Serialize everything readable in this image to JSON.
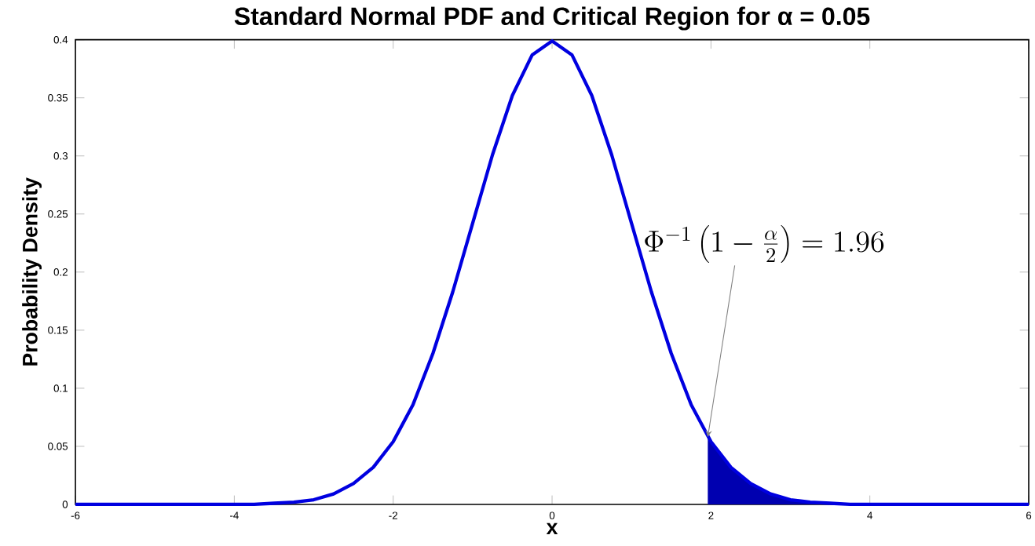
{
  "chart_data": {
    "type": "line",
    "title": "Standard Normal PDF and Critical Region for α = 0.05",
    "xlabel": "x",
    "ylabel": "Probability Density",
    "series": [
      {
        "color": "#0000e0",
        "x": [
          -6,
          -5.5,
          -5,
          -4.5,
          -4,
          -3.75,
          -3.5,
          -3.25,
          -3,
          -2.75,
          -2.5,
          -2.25,
          -2,
          -1.75,
          -1.5,
          -1.25,
          -1,
          -0.75,
          -0.5,
          -0.25,
          0,
          0.25,
          0.5,
          0.75,
          1,
          1.25,
          1.5,
          1.75,
          2,
          2.25,
          2.5,
          2.75,
          3,
          3.25,
          3.5,
          3.75,
          4,
          4.5,
          5,
          5.5,
          6
        ],
        "values": [
          0,
          0,
          0,
          0,
          0,
          0,
          0.001,
          0.002,
          0.004,
          0.009,
          0.018,
          0.032,
          0.054,
          0.086,
          0.13,
          0.183,
          0.242,
          0.301,
          0.352,
          0.387,
          0.399,
          0.387,
          0.352,
          0.301,
          0.242,
          0.183,
          0.13,
          0.086,
          0.054,
          0.032,
          0.018,
          0.009,
          0.004,
          0.002,
          0.001,
          0,
          0,
          0,
          0,
          0,
          0
        ]
      },
      {
        "type": "area",
        "color": "#0000b0",
        "x": [
          1.96,
          2,
          2.25,
          2.5,
          2.75,
          3,
          3.25,
          3.5,
          3.75,
          4,
          5,
          6
        ],
        "values": [
          0.058,
          0.054,
          0.032,
          0.018,
          0.009,
          0.004,
          0.002,
          0.001,
          0,
          0,
          0,
          0
        ]
      }
    ],
    "xlim": [
      -6,
      6
    ],
    "xticks": [
      -6,
      -4,
      -2,
      0,
      2,
      4,
      6
    ],
    "ylim": [
      0,
      0.4
    ],
    "yticks": [
      0,
      0.05,
      0.1,
      0.15,
      0.2,
      0.25,
      0.3,
      0.35,
      0.4
    ],
    "annotations": [
      {
        "text": "\\Phi^{-1}\\left(1-\\frac{\\alpha}{2}\\right)=1.96",
        "x": 1.96,
        "y": 0.058
      }
    ],
    "grid": false
  }
}
